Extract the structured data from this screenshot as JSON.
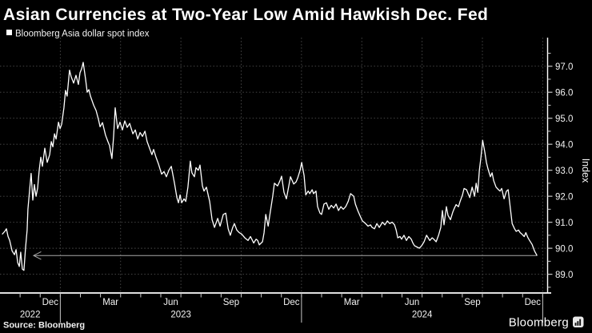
{
  "header": {
    "title": "Asian Currencies at Two-Year Low Amid Hawkish Dec. Fed"
  },
  "legend": {
    "marker": "white-square",
    "label": "Bloomberg Asia dollar spot index"
  },
  "footer": {
    "source": "Source: Bloomberg",
    "brand": "Bloomberg",
    "brand_icon": "bar-chart-icon"
  },
  "colors": {
    "background": "#000000",
    "title_text": "#ffffff",
    "series_line": "#ffffff",
    "grid": "#4d4d4d",
    "axis": "#ffffff",
    "tick": "#c8c8c8",
    "arrow": "#a8a8a8"
  },
  "chart_data": {
    "type": "line",
    "title": "Asian Currencies at Two-Year Low Amid Hawkish Dec. Fed",
    "y_axis_title": "Index",
    "x_unit": "months since 2022-10-01 (axis spans Oct 2022 - Dec 2024)",
    "xlim": [
      0,
      27.25
    ],
    "ylim": [
      88.28,
      98.1
    ],
    "grid": true,
    "legend_position": "top-left",
    "y_ticks": [
      {
        "v": 89,
        "label": "89.0"
      },
      {
        "v": 90,
        "label": "90.0"
      },
      {
        "v": 91,
        "label": "91.0"
      },
      {
        "v": 92,
        "label": "92.0"
      },
      {
        "v": 93,
        "label": "93.0"
      },
      {
        "v": 94,
        "label": "94.0"
      },
      {
        "v": 95,
        "label": "95.0"
      },
      {
        "v": 96,
        "label": "96.0"
      },
      {
        "v": 97,
        "label": "97.0"
      }
    ],
    "y_minor_tick_step": 0.5,
    "x_tick_labels": [
      {
        "label": "Dec",
        "m": 2.5
      },
      {
        "label": "Mar",
        "m": 5.5
      },
      {
        "label": "Jun",
        "m": 8.5
      },
      {
        "label": "Sep",
        "m": 11.5
      },
      {
        "label": "Dec",
        "m": 14.5
      },
      {
        "label": "Mar",
        "m": 17.5
      },
      {
        "label": "Jun",
        "m": 20.5
      },
      {
        "label": "Sep",
        "m": 23.5
      },
      {
        "label": "Dec",
        "m": 26.5
      }
    ],
    "x_month_ticks_m": [
      1,
      2,
      3,
      4,
      5,
      6,
      7,
      8,
      9,
      10,
      11,
      12,
      13,
      14,
      15,
      16,
      17,
      18,
      19,
      20,
      21,
      22,
      23,
      24,
      25,
      26,
      27
    ],
    "quarter_gridlines_m": [
      3,
      6,
      9,
      12,
      15,
      18,
      21,
      24,
      27
    ],
    "year_labels": [
      {
        "label": "2022",
        "m": 1.5
      },
      {
        "label": "2023",
        "m": 9
      },
      {
        "label": "2024",
        "m": 21
      }
    ],
    "year_separators_m": [
      3,
      15,
      27
    ],
    "annotation": {
      "type": "arrow-left",
      "value": 89.72,
      "from_m": 1.67,
      "to_m": 26.71
    },
    "series": [
      {
        "name": "Bloomberg Asia dollar spot index",
        "color": "#ffffff",
        "points": [
          [
            0.12,
            90.55
          ],
          [
            0.24,
            90.65
          ],
          [
            0.32,
            90.75
          ],
          [
            0.4,
            90.45
          ],
          [
            0.48,
            90.3
          ],
          [
            0.6,
            89.9
          ],
          [
            0.72,
            89.75
          ],
          [
            0.8,
            89.95
          ],
          [
            0.88,
            89.45
          ],
          [
            0.96,
            89.3
          ],
          [
            1.03,
            89.85
          ],
          [
            1.11,
            89.2
          ],
          [
            1.19,
            89.15
          ],
          [
            1.27,
            90.0
          ],
          [
            1.35,
            90.7
          ],
          [
            1.39,
            91.5
          ],
          [
            1.47,
            92.2
          ],
          [
            1.55,
            92.88
          ],
          [
            1.63,
            91.85
          ],
          [
            1.71,
            92.45
          ],
          [
            1.79,
            92.0
          ],
          [
            1.87,
            92.3
          ],
          [
            1.95,
            93.0
          ],
          [
            2.03,
            93.5
          ],
          [
            2.11,
            93.15
          ],
          [
            2.23,
            93.85
          ],
          [
            2.35,
            93.3
          ],
          [
            2.47,
            93.6
          ],
          [
            2.55,
            94.1
          ],
          [
            2.63,
            93.9
          ],
          [
            2.71,
            94.4
          ],
          [
            2.79,
            94.2
          ],
          [
            2.91,
            94.85
          ],
          [
            2.99,
            94.6
          ],
          [
            3.07,
            94.77
          ],
          [
            3.18,
            95.4
          ],
          [
            3.26,
            96.07
          ],
          [
            3.34,
            95.85
          ],
          [
            3.46,
            96.85
          ],
          [
            3.54,
            96.6
          ],
          [
            3.66,
            96.35
          ],
          [
            3.78,
            96.65
          ],
          [
            3.9,
            96.3
          ],
          [
            3.98,
            96.75
          ],
          [
            4.06,
            96.9
          ],
          [
            4.14,
            97.15
          ],
          [
            4.26,
            96.5
          ],
          [
            4.34,
            96.0
          ],
          [
            4.42,
            96.1
          ],
          [
            4.5,
            95.85
          ],
          [
            4.66,
            95.5
          ],
          [
            4.78,
            95.3
          ],
          [
            4.9,
            94.95
          ],
          [
            4.98,
            94.67
          ],
          [
            5.1,
            94.83
          ],
          [
            5.25,
            94.35
          ],
          [
            5.37,
            94.1
          ],
          [
            5.45,
            93.95
          ],
          [
            5.57,
            93.45
          ],
          [
            5.65,
            94.3
          ],
          [
            5.73,
            95.4
          ],
          [
            5.85,
            94.6
          ],
          [
            5.97,
            94.85
          ],
          [
            6.09,
            94.55
          ],
          [
            6.21,
            94.9
          ],
          [
            6.33,
            94.65
          ],
          [
            6.45,
            94.8
          ],
          [
            6.61,
            94.4
          ],
          [
            6.73,
            94.55
          ],
          [
            6.85,
            94.2
          ],
          [
            6.97,
            94.45
          ],
          [
            7.09,
            94.3
          ],
          [
            7.21,
            94.5
          ],
          [
            7.32,
            94.1
          ],
          [
            7.44,
            93.85
          ],
          [
            7.56,
            93.6
          ],
          [
            7.64,
            93.8
          ],
          [
            7.76,
            93.5
          ],
          [
            7.88,
            93.25
          ],
          [
            8.04,
            92.85
          ],
          [
            8.16,
            92.95
          ],
          [
            8.28,
            92.75
          ],
          [
            8.4,
            93.0
          ],
          [
            8.52,
            93.15
          ],
          [
            8.68,
            92.5
          ],
          [
            8.8,
            91.95
          ],
          [
            8.88,
            91.75
          ],
          [
            8.96,
            92.05
          ],
          [
            9.04,
            91.75
          ],
          [
            9.16,
            91.9
          ],
          [
            9.24,
            91.8
          ],
          [
            9.35,
            92.35
          ],
          [
            9.47,
            93.35
          ],
          [
            9.55,
            92.9
          ],
          [
            9.67,
            92.75
          ],
          [
            9.75,
            93.1
          ],
          [
            9.87,
            93.0
          ],
          [
            9.95,
            93.2
          ],
          [
            10.07,
            92.4
          ],
          [
            10.15,
            92.2
          ],
          [
            10.27,
            92.35
          ],
          [
            10.43,
            91.8
          ],
          [
            10.55,
            91.1
          ],
          [
            10.67,
            90.8
          ],
          [
            10.83,
            91.15
          ],
          [
            10.95,
            90.85
          ],
          [
            11.11,
            91.3
          ],
          [
            11.23,
            91.35
          ],
          [
            11.35,
            90.75
          ],
          [
            11.46,
            90.5
          ],
          [
            11.58,
            90.8
          ],
          [
            11.66,
            90.95
          ],
          [
            11.78,
            90.7
          ],
          [
            11.9,
            90.6
          ],
          [
            12.02,
            90.55
          ],
          [
            12.18,
            90.4
          ],
          [
            12.34,
            90.3
          ],
          [
            12.46,
            90.45
          ],
          [
            12.62,
            90.2
          ],
          [
            12.74,
            90.35
          ],
          [
            12.82,
            90.3
          ],
          [
            12.9,
            90.13
          ],
          [
            13.06,
            90.25
          ],
          [
            13.14,
            90.6
          ],
          [
            13.22,
            91.3
          ],
          [
            13.34,
            90.85
          ],
          [
            13.45,
            91.4
          ],
          [
            13.57,
            92.0
          ],
          [
            13.65,
            92.5
          ],
          [
            13.81,
            92.4
          ],
          [
            13.93,
            92.6
          ],
          [
            14.01,
            92.77
          ],
          [
            14.13,
            92.15
          ],
          [
            14.25,
            91.9
          ],
          [
            14.37,
            92.4
          ],
          [
            14.45,
            92.75
          ],
          [
            14.61,
            92.47
          ],
          [
            14.73,
            92.55
          ],
          [
            14.81,
            92.7
          ],
          [
            14.93,
            93.0
          ],
          [
            15.01,
            93.3
          ],
          [
            15.13,
            92.8
          ],
          [
            15.21,
            92.05
          ],
          [
            15.33,
            92.2
          ],
          [
            15.41,
            92.1
          ],
          [
            15.53,
            92.25
          ],
          [
            15.6,
            92.1
          ],
          [
            15.72,
            92.2
          ],
          [
            15.8,
            91.6
          ],
          [
            15.92,
            91.35
          ],
          [
            16.0,
            91.3
          ],
          [
            16.12,
            91.7
          ],
          [
            16.24,
            91.75
          ],
          [
            16.36,
            91.5
          ],
          [
            16.48,
            91.65
          ],
          [
            16.6,
            91.55
          ],
          [
            16.72,
            91.7
          ],
          [
            16.84,
            91.45
          ],
          [
            16.96,
            91.6
          ],
          [
            17.08,
            91.5
          ],
          [
            17.2,
            91.6
          ],
          [
            17.32,
            91.8
          ],
          [
            17.44,
            92.1
          ],
          [
            17.52,
            92.05
          ],
          [
            17.6,
            92.0
          ],
          [
            17.68,
            91.7
          ],
          [
            17.8,
            91.45
          ],
          [
            17.91,
            91.25
          ],
          [
            18.03,
            91.05
          ],
          [
            18.19,
            90.95
          ],
          [
            18.31,
            90.85
          ],
          [
            18.43,
            90.9
          ],
          [
            18.51,
            90.8
          ],
          [
            18.63,
            90.75
          ],
          [
            18.75,
            90.95
          ],
          [
            18.87,
            90.8
          ],
          [
            19.03,
            91.0
          ],
          [
            19.15,
            90.9
          ],
          [
            19.27,
            91.05
          ],
          [
            19.39,
            90.95
          ],
          [
            19.51,
            91.0
          ],
          [
            19.63,
            90.9
          ],
          [
            19.71,
            90.7
          ],
          [
            19.79,
            90.4
          ],
          [
            19.9,
            90.45
          ],
          [
            19.98,
            90.35
          ],
          [
            20.1,
            90.5
          ],
          [
            20.22,
            90.3
          ],
          [
            20.34,
            90.45
          ],
          [
            20.46,
            90.35
          ],
          [
            20.54,
            90.2
          ],
          [
            20.62,
            90.1
          ],
          [
            20.74,
            90.05
          ],
          [
            20.86,
            90.0
          ],
          [
            20.98,
            90.1
          ],
          [
            21.1,
            90.25
          ],
          [
            21.22,
            90.5
          ],
          [
            21.3,
            90.4
          ],
          [
            21.38,
            90.3
          ],
          [
            21.5,
            90.4
          ],
          [
            21.58,
            90.35
          ],
          [
            21.7,
            90.25
          ],
          [
            21.82,
            90.5
          ],
          [
            21.93,
            90.8
          ],
          [
            22.01,
            91.45
          ],
          [
            22.09,
            90.9
          ],
          [
            22.21,
            91.6
          ],
          [
            22.29,
            91.27
          ],
          [
            22.41,
            91.1
          ],
          [
            22.53,
            91.4
          ],
          [
            22.61,
            91.55
          ],
          [
            22.69,
            91.68
          ],
          [
            22.81,
            91.6
          ],
          [
            22.89,
            91.8
          ],
          [
            23.01,
            92.05
          ],
          [
            23.09,
            92.3
          ],
          [
            23.21,
            92.25
          ],
          [
            23.29,
            92.1
          ],
          [
            23.37,
            91.95
          ],
          [
            23.49,
            92.35
          ],
          [
            23.61,
            92.0
          ],
          [
            23.69,
            92.5
          ],
          [
            23.77,
            92.15
          ],
          [
            23.85,
            93.0
          ],
          [
            23.93,
            93.5
          ],
          [
            24.01,
            94.15
          ],
          [
            24.12,
            93.7
          ],
          [
            24.2,
            93.3
          ],
          [
            24.28,
            93.05
          ],
          [
            24.4,
            92.75
          ],
          [
            24.48,
            92.9
          ],
          [
            24.56,
            92.6
          ],
          [
            24.68,
            92.35
          ],
          [
            24.8,
            92.25
          ],
          [
            24.88,
            92.2
          ],
          [
            24.96,
            92.3
          ],
          [
            25.08,
            91.9
          ],
          [
            25.2,
            92.2
          ],
          [
            25.28,
            92.25
          ],
          [
            25.4,
            91.47
          ],
          [
            25.48,
            90.95
          ],
          [
            25.6,
            90.75
          ],
          [
            25.68,
            90.65
          ],
          [
            25.8,
            90.7
          ],
          [
            25.88,
            90.6
          ],
          [
            25.96,
            90.55
          ],
          [
            26.08,
            90.45
          ],
          [
            26.16,
            90.6
          ],
          [
            26.27,
            90.4
          ],
          [
            26.35,
            90.3
          ],
          [
            26.47,
            90.15
          ],
          [
            26.59,
            89.9
          ],
          [
            26.71,
            89.73
          ]
        ]
      }
    ]
  }
}
